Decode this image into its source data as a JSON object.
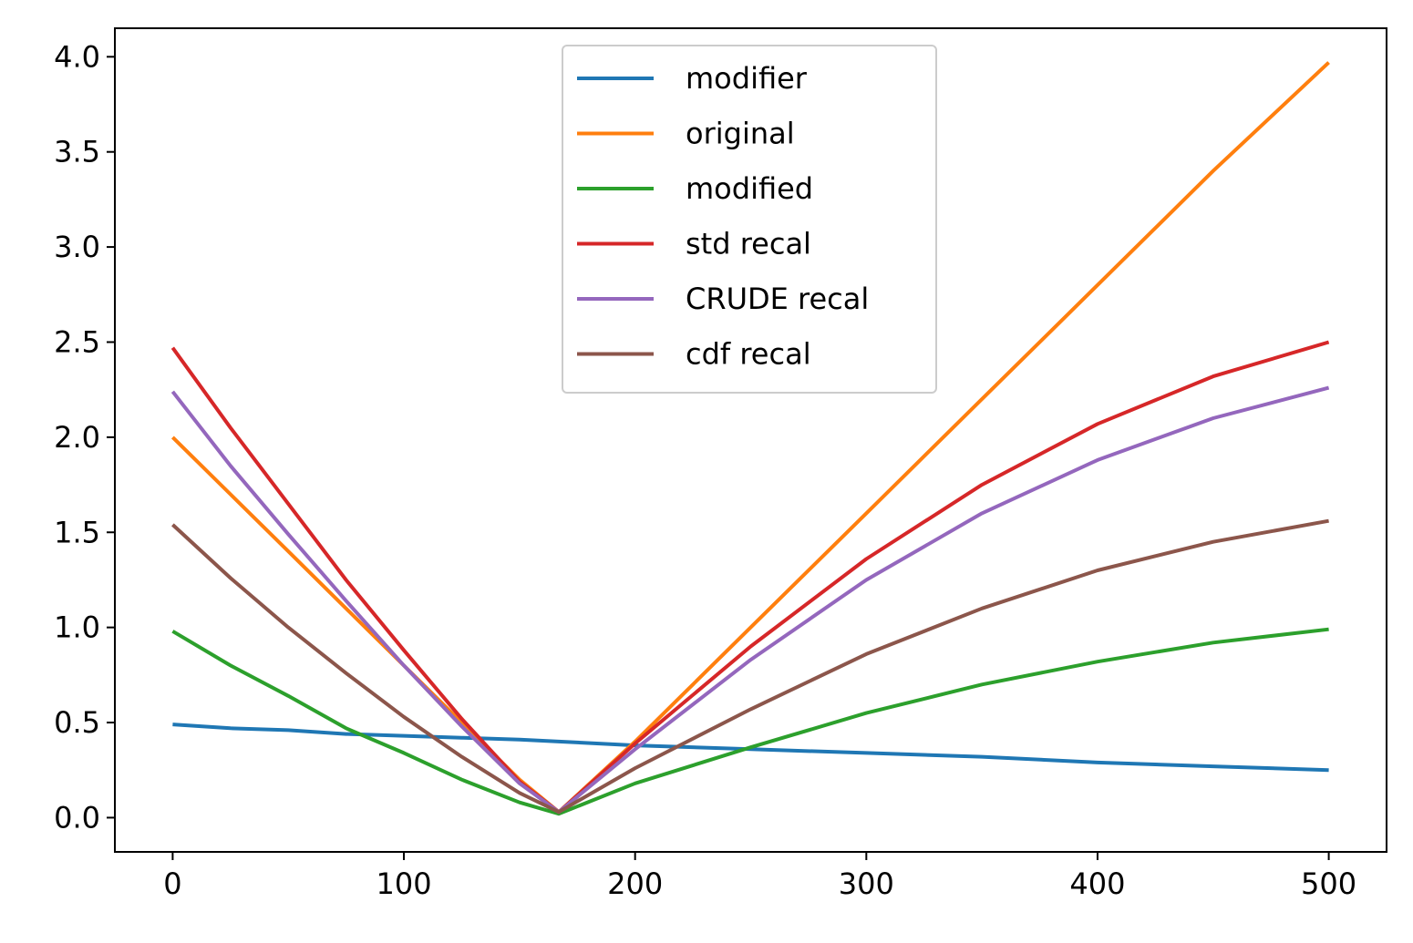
{
  "chart_data": {
    "type": "line",
    "title": "",
    "xlabel": "",
    "ylabel": "",
    "xlim": [
      -25,
      525
    ],
    "ylim": [
      -0.18,
      4.15
    ],
    "xticks": [
      0,
      100,
      200,
      300,
      400,
      500
    ],
    "xtick_labels": [
      "0",
      "100",
      "200",
      "300",
      "400",
      "500"
    ],
    "yticks": [
      0.0,
      0.5,
      1.0,
      1.5,
      2.0,
      2.5,
      3.0,
      3.5,
      4.0
    ],
    "ytick_labels": [
      "0.0",
      "0.5",
      "1.0",
      "1.5",
      "2.0",
      "2.5",
      "3.0",
      "3.5",
      "4.0"
    ],
    "grid": false,
    "legend_position": "top-center",
    "x": [
      0,
      25,
      50,
      75,
      100,
      125,
      150,
      167,
      200,
      250,
      300,
      350,
      400,
      450,
      500
    ],
    "series": [
      {
        "name": "modifier",
        "color": "#1f77b4",
        "values": [
          0.49,
          0.47,
          0.46,
          0.44,
          0.43,
          0.42,
          0.41,
          0.4,
          0.38,
          0.36,
          0.34,
          0.32,
          0.29,
          0.27,
          0.25
        ]
      },
      {
        "name": "original",
        "color": "#ff7f0e",
        "values": [
          2.0,
          1.7,
          1.4,
          1.1,
          0.8,
          0.5,
          0.2,
          0.03,
          0.4,
          1.0,
          1.6,
          2.2,
          2.8,
          3.4,
          3.97
        ]
      },
      {
        "name": "modified",
        "color": "#2ca02c",
        "values": [
          0.98,
          0.8,
          0.64,
          0.47,
          0.34,
          0.2,
          0.08,
          0.02,
          0.18,
          0.37,
          0.55,
          0.7,
          0.82,
          0.92,
          0.99
        ]
      },
      {
        "name": "std recal",
        "color": "#d62728",
        "values": [
          2.47,
          2.05,
          1.65,
          1.25,
          0.88,
          0.52,
          0.19,
          0.03,
          0.39,
          0.9,
          1.36,
          1.75,
          2.07,
          2.32,
          2.5
        ]
      },
      {
        "name": "CRUDE recal",
        "color": "#9467bd",
        "values": [
          2.24,
          1.85,
          1.49,
          1.14,
          0.8,
          0.48,
          0.18,
          0.03,
          0.36,
          0.83,
          1.25,
          1.6,
          1.88,
          2.1,
          2.26
        ]
      },
      {
        "name": "cdf recal",
        "color": "#8c564b",
        "values": [
          1.54,
          1.26,
          1.0,
          0.76,
          0.53,
          0.32,
          0.13,
          0.03,
          0.26,
          0.57,
          0.86,
          1.1,
          1.3,
          1.45,
          1.56
        ]
      }
    ]
  }
}
